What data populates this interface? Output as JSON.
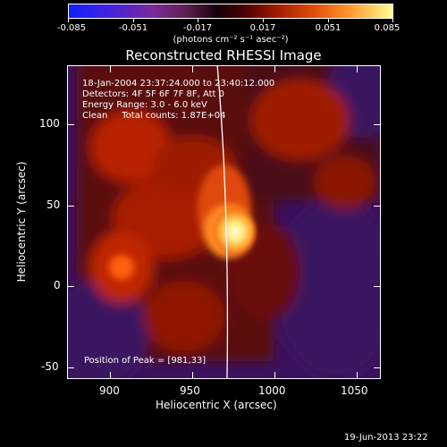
{
  "colorbar": {
    "tick_labels": [
      "-0.085",
      "-0.051",
      "-0.017",
      "0.017",
      "0.051",
      "0.085"
    ],
    "units": "(photons cm⁻² s⁻¹ asec⁻²)"
  },
  "title": "Reconstructed RHESSI Image",
  "info": {
    "time_range": "18-Jan-2004 23:37:24.000 to 23:40:12.000",
    "detectors": "Detectors: 4F 5F 6F 7F 8F, Att 0",
    "energy": "Energy Range: 3.0 - 6.0 keV",
    "clean": "Clean     Total counts: 1.87E+04",
    "peak": "Position of Peak = [981,33]"
  },
  "axes": {
    "x_label": "Heliocentric X (arcsec)",
    "y_label": "Heliocentric Y (arcsec)",
    "x_ticks": [
      "900",
      "950",
      "1000",
      "1050"
    ],
    "y_ticks": [
      "100",
      "50",
      "0",
      "-50"
    ]
  },
  "footer": "19-Jun-2013 23:22",
  "colors": {
    "background": "#000000",
    "low": "#1020ff",
    "mid": "#140008",
    "high": "#ffff90",
    "limb_line": "#ffffff"
  }
}
